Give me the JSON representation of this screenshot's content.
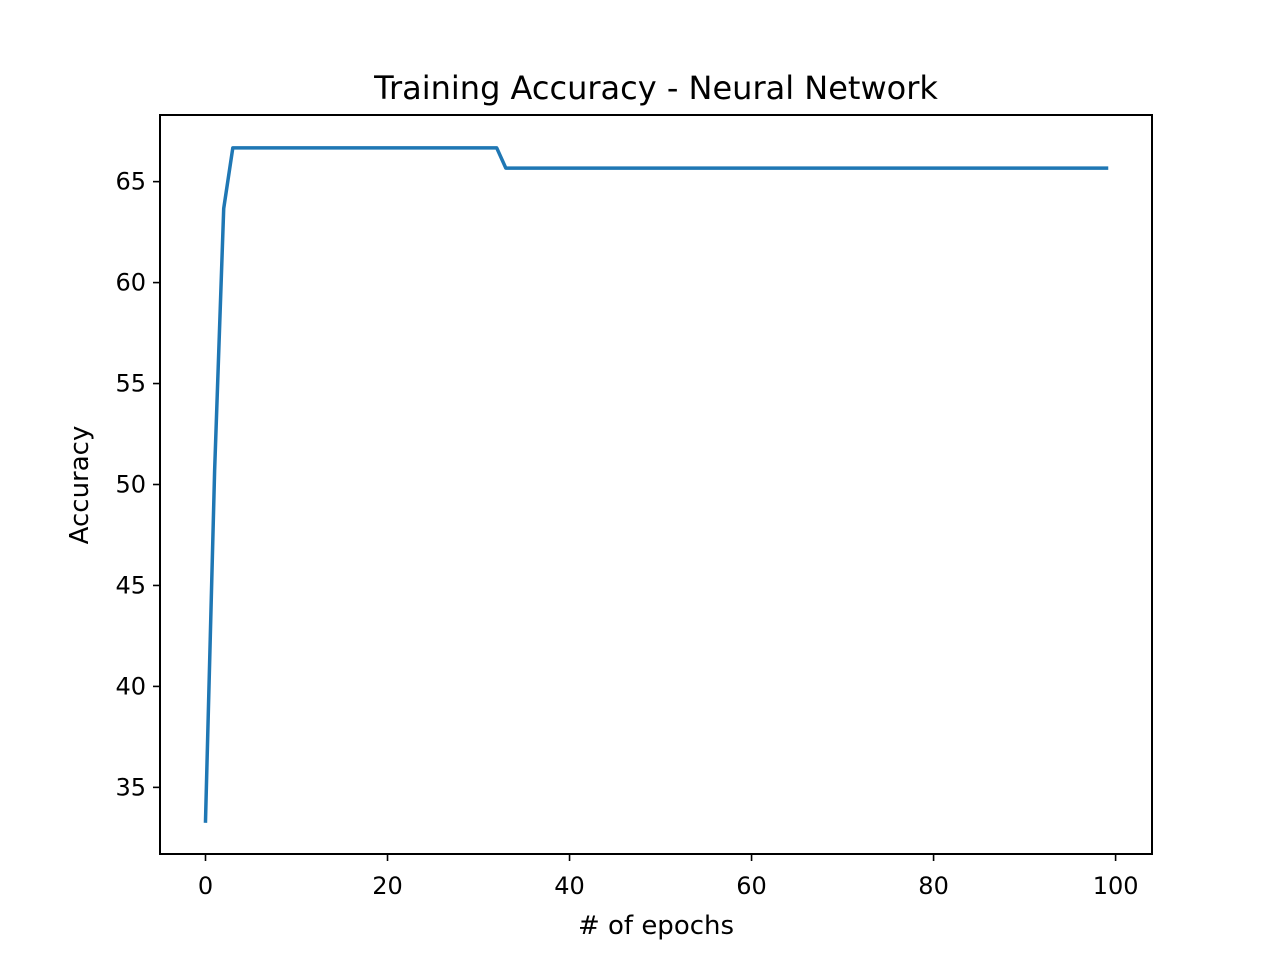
{
  "chart_data": {
    "type": "line",
    "title": "Training Accuracy - Neural Network",
    "xlabel": "# of epochs",
    "ylabel": "Accuracy",
    "xlim": [
      -5,
      104
    ],
    "ylim": [
      31.7,
      68.3
    ],
    "xticks": [
      0,
      20,
      40,
      60,
      80,
      100
    ],
    "yticks": [
      35,
      40,
      45,
      50,
      55,
      60,
      65
    ],
    "grid": false,
    "legend": "none",
    "series": [
      {
        "color": "#1f77b4",
        "points": [
          [
            0,
            33.33
          ],
          [
            1,
            50.67
          ],
          [
            2,
            63.67
          ],
          [
            3,
            66.67
          ],
          [
            32,
            66.67
          ],
          [
            33,
            65.67
          ],
          [
            99,
            65.67
          ]
        ]
      }
    ]
  }
}
